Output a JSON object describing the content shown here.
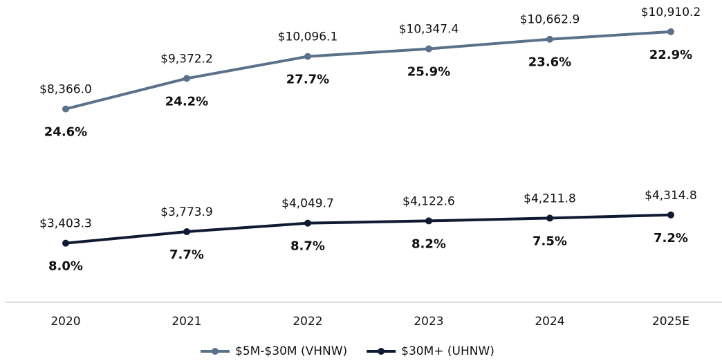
{
  "chart_data": {
    "type": "line",
    "categories": [
      "2020",
      "2021",
      "2022",
      "2023",
      "2024",
      "2025E"
    ],
    "ylim": [
      2000,
      11500
    ],
    "y2lim": [
      1500,
      10800
    ],
    "legend": "bottom",
    "series": [
      {
        "name": "$5M-$30M (VHNW)",
        "color": "#5b7189",
        "values": [
          8366.0,
          9372.2,
          10096.1,
          10347.4,
          10662.9,
          10910.2
        ],
        "value_labels": [
          "$8,366.0",
          "$9,372.2",
          "$10,096.1",
          "$10,347.4",
          "$10,662.9",
          "$10,910.2"
        ],
        "shares": [
          24.6,
          24.2,
          27.7,
          25.9,
          23.6,
          22.9
        ],
        "share_labels": [
          "24.6%",
          "24.2%",
          "27.7%",
          "25.9%",
          "23.6%",
          "22.9%"
        ]
      },
      {
        "name": "$30M+ (UHNW)",
        "color": "#111a33",
        "axis": "y2",
        "values": [
          3403.3,
          3773.9,
          4049.7,
          4122.6,
          4211.8,
          4314.8
        ],
        "value_labels": [
          "$3,403.3",
          "$3,773.9",
          "$4,049.7",
          "$4,122.6",
          "$4,211.8",
          "$4,314.8"
        ],
        "shares": [
          8.0,
          7.7,
          8.7,
          8.2,
          7.5,
          7.2
        ],
        "share_labels": [
          "8.0%",
          "7.7%",
          "8.7%",
          "8.2%",
          "7.5%",
          "7.2%"
        ]
      }
    ]
  }
}
